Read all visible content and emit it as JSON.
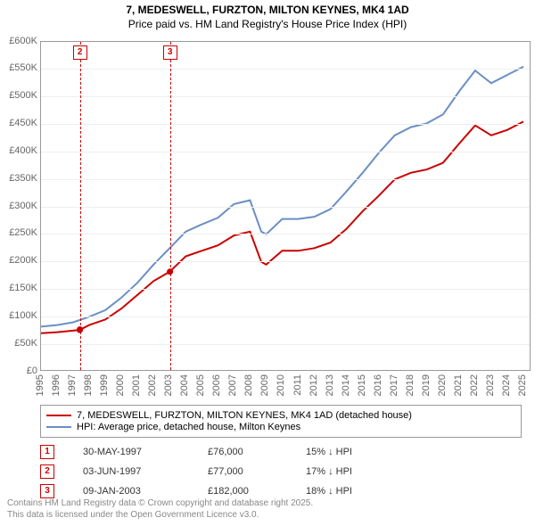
{
  "title_line1": "7, MEDESWELL, FURZTON, MILTON KEYNES, MK4 1AD",
  "title_line2": "Price paid vs. HM Land Registry's House Price Index (HPI)",
  "chart": {
    "type": "line",
    "background_color": "#ffffff",
    "grid_color": "#eeeeee",
    "border_color": "#999999",
    "x_years": [
      1995,
      1996,
      1997,
      1998,
      1999,
      2000,
      2001,
      2002,
      2003,
      2004,
      2005,
      2006,
      2007,
      2008,
      2009,
      2010,
      2011,
      2012,
      2013,
      2014,
      2015,
      2016,
      2017,
      2018,
      2019,
      2020,
      2021,
      2022,
      2023,
      2024,
      2025
    ],
    "xlim": [
      1995,
      2025.5
    ],
    "ylim": [
      0,
      600000
    ],
    "ytick_step": 50000,
    "yticks": [
      "£0",
      "£50K",
      "£100K",
      "£150K",
      "£200K",
      "£250K",
      "£300K",
      "£350K",
      "£400K",
      "£450K",
      "£500K",
      "£550K",
      "£600K"
    ],
    "series": [
      {
        "name": "price_paid",
        "color": "#cc0000",
        "width": 2,
        "points": [
          [
            1995,
            70000
          ],
          [
            1996,
            72000
          ],
          [
            1997.4,
            76000
          ],
          [
            1998,
            85000
          ],
          [
            1999,
            95000
          ],
          [
            2000,
            115000
          ],
          [
            2001,
            140000
          ],
          [
            2002,
            165000
          ],
          [
            2003.0,
            182000
          ],
          [
            2004,
            210000
          ],
          [
            2005,
            220000
          ],
          [
            2006,
            230000
          ],
          [
            2007,
            248000
          ],
          [
            2008,
            255000
          ],
          [
            2008.7,
            200000
          ],
          [
            2009,
            195000
          ],
          [
            2010,
            220000
          ],
          [
            2011,
            220000
          ],
          [
            2012,
            225000
          ],
          [
            2013,
            235000
          ],
          [
            2014,
            260000
          ],
          [
            2015,
            292000
          ],
          [
            2016,
            320000
          ],
          [
            2017,
            350000
          ],
          [
            2018,
            362000
          ],
          [
            2019,
            368000
          ],
          [
            2020,
            380000
          ],
          [
            2021,
            415000
          ],
          [
            2022,
            448000
          ],
          [
            2023,
            430000
          ],
          [
            2024,
            440000
          ],
          [
            2025,
            455000
          ]
        ]
      },
      {
        "name": "hpi",
        "color": "#6a8fc5",
        "width": 2,
        "points": [
          [
            1995,
            82000
          ],
          [
            1996,
            85000
          ],
          [
            1997,
            90000
          ],
          [
            1998,
            100000
          ],
          [
            1999,
            112000
          ],
          [
            2000,
            135000
          ],
          [
            2001,
            162000
          ],
          [
            2002,
            195000
          ],
          [
            2003,
            225000
          ],
          [
            2004,
            255000
          ],
          [
            2005,
            268000
          ],
          [
            2006,
            280000
          ],
          [
            2007,
            305000
          ],
          [
            2008,
            312000
          ],
          [
            2008.7,
            255000
          ],
          [
            2009,
            250000
          ],
          [
            2010,
            278000
          ],
          [
            2011,
            278000
          ],
          [
            2012,
            282000
          ],
          [
            2013,
            296000
          ],
          [
            2014,
            328000
          ],
          [
            2015,
            362000
          ],
          [
            2016,
            398000
          ],
          [
            2017,
            430000
          ],
          [
            2018,
            445000
          ],
          [
            2019,
            452000
          ],
          [
            2020,
            468000
          ],
          [
            2021,
            510000
          ],
          [
            2022,
            548000
          ],
          [
            2023,
            525000
          ],
          [
            2024,
            540000
          ],
          [
            2025,
            555000
          ]
        ]
      }
    ],
    "sale_points": [
      {
        "x": 1997.41,
        "y": 76000
      },
      {
        "x": 1997.42,
        "y": 77000
      },
      {
        "x": 2003.02,
        "y": 182000
      }
    ],
    "markers": [
      {
        "num": "2",
        "year": 1997.42
      },
      {
        "num": "3",
        "year": 2003.02
      }
    ]
  },
  "legend": {
    "items": [
      {
        "color": "#cc0000",
        "label": "7, MEDESWELL, FURZTON, MILTON KEYNES, MK4 1AD (detached house)"
      },
      {
        "color": "#6a8fc5",
        "label": "HPI: Average price, detached house, Milton Keynes"
      }
    ]
  },
  "sales_table": [
    {
      "num": "1",
      "date": "30-MAY-1997",
      "price": "£76,000",
      "pct": "15% ↓ HPI"
    },
    {
      "num": "2",
      "date": "03-JUN-1997",
      "price": "£77,000",
      "pct": "17% ↓ HPI"
    },
    {
      "num": "3",
      "date": "09-JAN-2003",
      "price": "£182,000",
      "pct": "18% ↓ HPI"
    }
  ],
  "footer_line1": "Contains HM Land Registry data © Crown copyright and database right 2025.",
  "footer_line2": "This data is licensed under the Open Government Licence v3.0."
}
